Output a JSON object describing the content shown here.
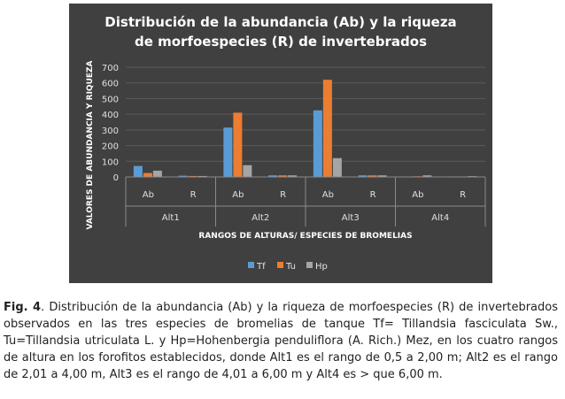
{
  "chart_data": {
    "type": "bar",
    "title": "Distribución de la abundancia (Ab) y la riqueza de morfoespecies (R) de invertebrados",
    "title_lines": [
      "Distribución de la abundancia (Ab) y la riqueza",
      "de morfoespecies (R) de invertebrados"
    ],
    "xlabel": "RANGOS DE  ALTURAS/ ESPECIES DE BROMELIAS",
    "ylabel": "VALORES DE ABUNDANCIA Y RIQUEZA",
    "ylim": [
      0,
      700
    ],
    "yticks": [
      0,
      100,
      200,
      300,
      400,
      500,
      600,
      700
    ],
    "groups": [
      "Alt1",
      "Alt2",
      "Alt3",
      "Alt4"
    ],
    "subcategories": [
      "Ab",
      "R"
    ],
    "categories": [
      "Alt1 Ab",
      "Alt1 R",
      "Alt2 Ab",
      "Alt2 R",
      "Alt3 Ab",
      "Alt3 R",
      "Alt4 Ab",
      "Alt4 R"
    ],
    "series": [
      {
        "name": "Tf",
        "color": "#5b9bd5",
        "values": [
          70,
          8,
          315,
          10,
          425,
          10,
          3,
          3
        ]
      },
      {
        "name": "Tu",
        "color": "#ed7d31",
        "values": [
          25,
          6,
          410,
          10,
          620,
          10,
          4,
          3
        ]
      },
      {
        "name": "Hp",
        "color": "#a5a5a5",
        "values": [
          40,
          6,
          75,
          10,
          120,
          10,
          10,
          5
        ]
      }
    ],
    "legend_position": "bottom",
    "grid": true
  },
  "caption": {
    "fig_label": "Fig. 4",
    "text": ". Distribución de la abundancia (Ab) y la riqueza de morfoespecies (R) de invertebrados observados en las tres especies de bromelias de tanque Tf= Tillandsia fasciculata Sw., Tu=Tillandsia utriculata L. y Hp=Hohenbergia penduliflora (A. Rich.) Mez, en los cuatro rangos de altura en los forofitos establecidos, donde Alt1 es el rango de 0,5 a 2,00 m; Alt2 es el rango de 2,01 a 4,00 m, Alt3 es el rango de 4,01 a 6,00 m y Alt4 es > que 6,00 m."
  }
}
